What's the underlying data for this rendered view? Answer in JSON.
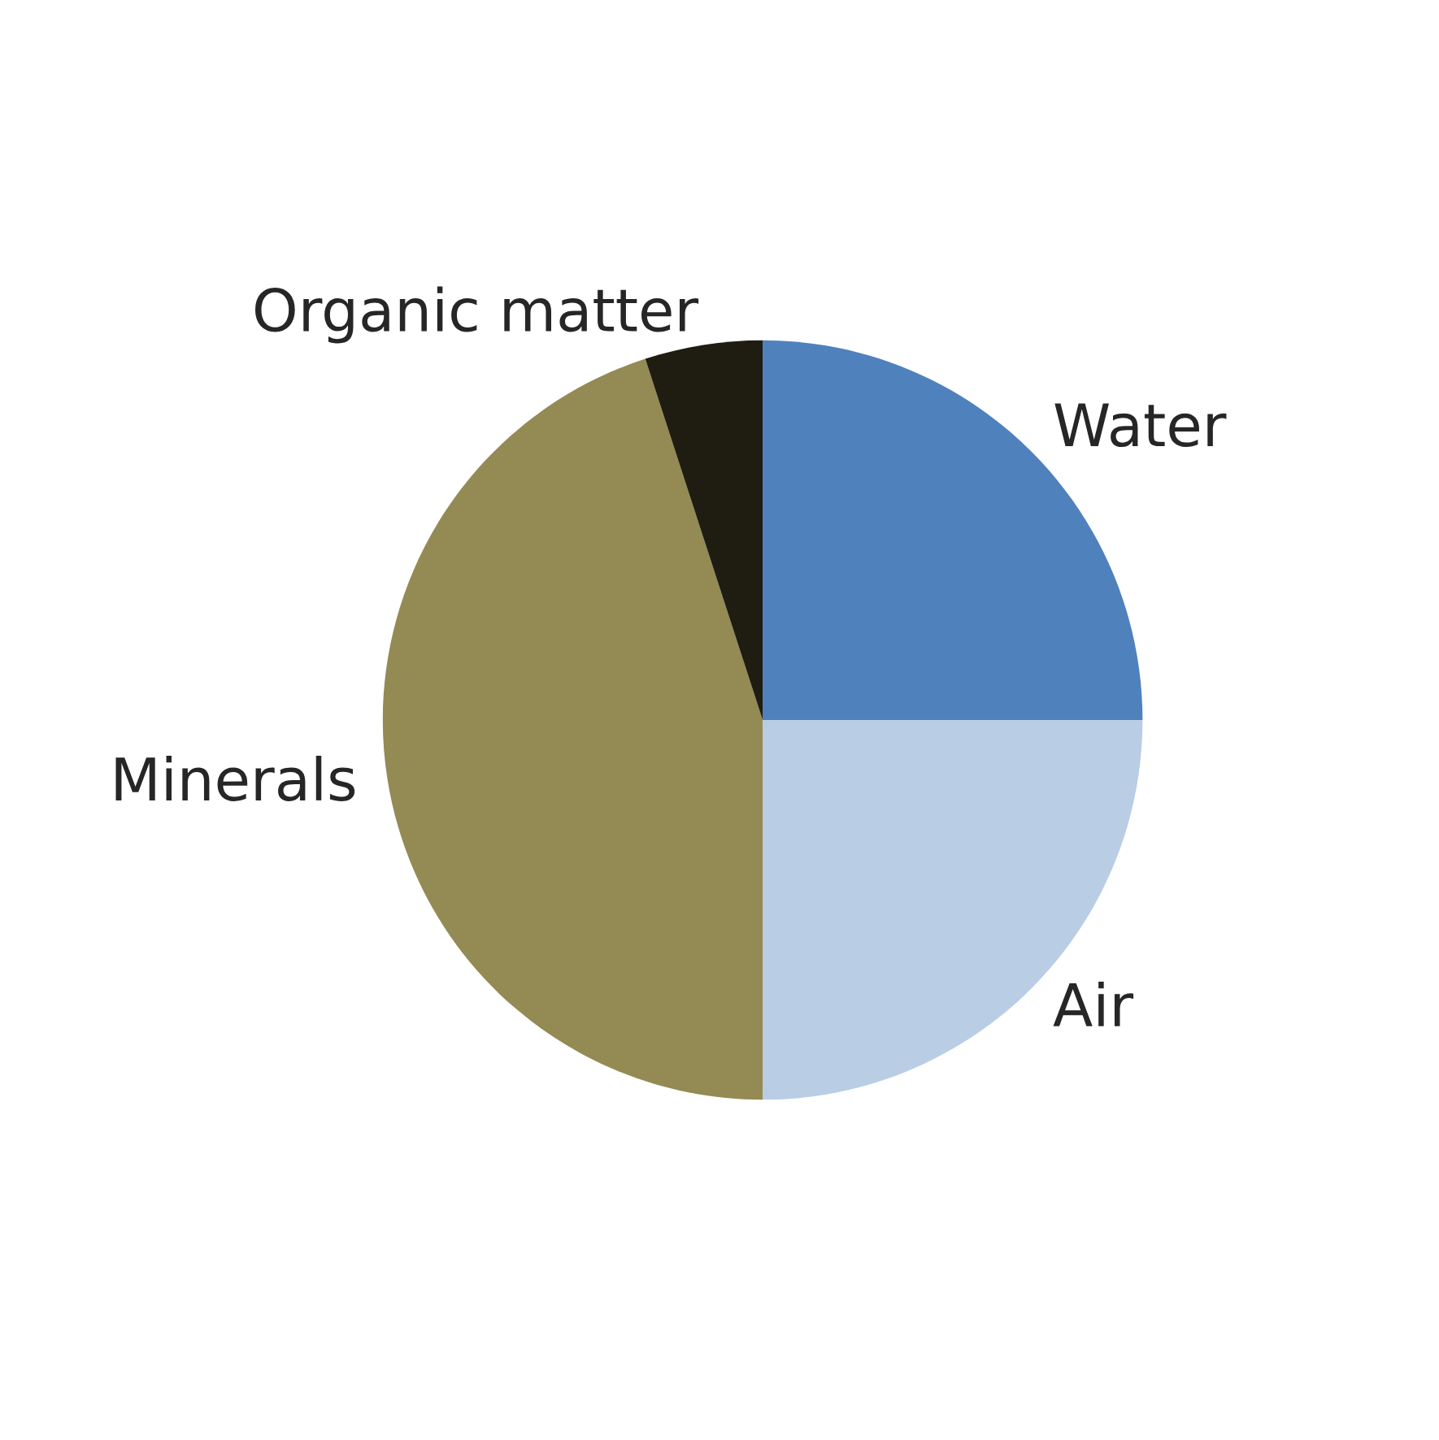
{
  "chart_data": {
    "type": "pie",
    "categories": [
      "Water",
      "Air",
      "Minerals",
      "Organic matter"
    ],
    "values": [
      25,
      25,
      45,
      5
    ],
    "colors": [
      "#4f81bd",
      "#b9cde5",
      "#948a54",
      "#1f1c12"
    ]
  }
}
